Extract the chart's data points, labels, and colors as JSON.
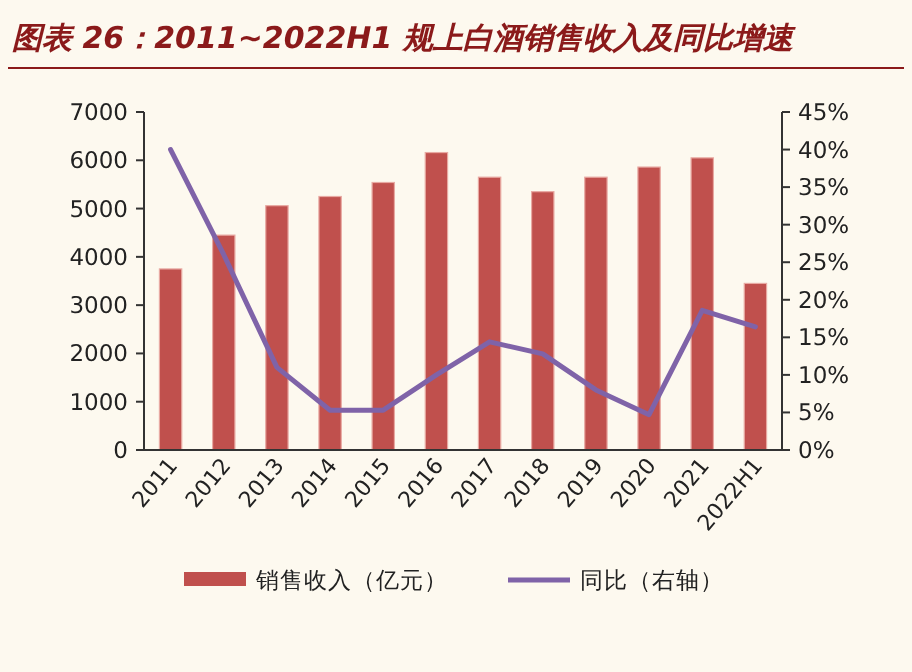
{
  "chart_data": {
    "type": "bar",
    "title": "图表 26：2011~2022H1 规上白酒销售收入及同比增速",
    "categories": [
      "2011",
      "2012",
      "2013",
      "2014",
      "2015",
      "2016",
      "2017",
      "2018",
      "2019",
      "2020",
      "2021",
      "2022H1"
    ],
    "series": [
      {
        "name": "销售收入（亿元）",
        "color": "#c0504d",
        "values": [
          3750,
          4450,
          5060,
          5250,
          5540,
          6160,
          5650,
          5350,
          5650,
          5860,
          6050,
          3450
        ]
      },
      {
        "name": "同比（右轴）",
        "type": "line",
        "axis": "y2",
        "color": "#7f63a8",
        "values": [
          40,
          26,
          11,
          5.3,
          5.3,
          10,
          14.4,
          12.8,
          8,
          4.7,
          18.6,
          16.4
        ]
      }
    ],
    "ylim": [
      0,
      7000
    ],
    "yticks": [
      0,
      1000,
      2000,
      3000,
      4000,
      5000,
      6000,
      7000
    ],
    "y2lim": [
      0,
      45
    ],
    "y2ticks": [
      {
        "value": 0,
        "label": "0%"
      },
      {
        "value": 5,
        "label": "5%"
      },
      {
        "value": 10,
        "label": "10%"
      },
      {
        "value": 15,
        "label": "15%"
      },
      {
        "value": 20,
        "label": "20%"
      },
      {
        "value": 25,
        "label": "25%"
      },
      {
        "value": 30,
        "label": "30%"
      },
      {
        "value": 35,
        "label": "35%"
      },
      {
        "value": 40,
        "label": "40%"
      },
      {
        "value": 45,
        "label": "45%"
      }
    ],
    "grid": false,
    "legend": "bottom"
  }
}
